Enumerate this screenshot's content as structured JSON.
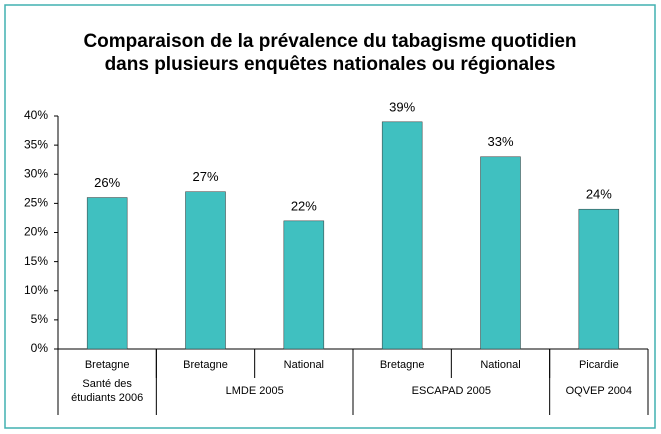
{
  "chart_data": {
    "type": "bar",
    "title": [
      "Comparaison de la prévalence du tabagisme quotidien",
      "dans plusieurs enquêtes nationales ou régionales"
    ],
    "categories": [
      "Bretagne",
      "Bretagne",
      "National",
      "Bretagne",
      "National",
      "Picardie"
    ],
    "groups": [
      {
        "label": [
          "Santé des",
          "étudiants 2006"
        ],
        "span": 1
      },
      {
        "label": [
          "LMDE 2005"
        ],
        "span": 2
      },
      {
        "label": [
          "ESCAPAD 2005"
        ],
        "span": 2
      },
      {
        "label": [
          "OQVEP 2004"
        ],
        "span": 1
      }
    ],
    "values": [
      26,
      27,
      22,
      39,
      33,
      24
    ],
    "value_labels": [
      "26%",
      "27%",
      "22%",
      "39%",
      "33%",
      "24%"
    ],
    "color": "#40c0c0",
    "ylim": [
      0,
      40
    ],
    "yticks": [
      {
        "value": 0,
        "label": "0%"
      },
      {
        "value": 5,
        "label": "5%"
      },
      {
        "value": 10,
        "label": "10%"
      },
      {
        "value": 15,
        "label": "15%"
      },
      {
        "value": 20,
        "label": "20%"
      },
      {
        "value": 25,
        "label": "25%"
      },
      {
        "value": 30,
        "label": "30%"
      },
      {
        "value": 35,
        "label": "35%"
      },
      {
        "value": 40,
        "label": "40%"
      }
    ]
  }
}
